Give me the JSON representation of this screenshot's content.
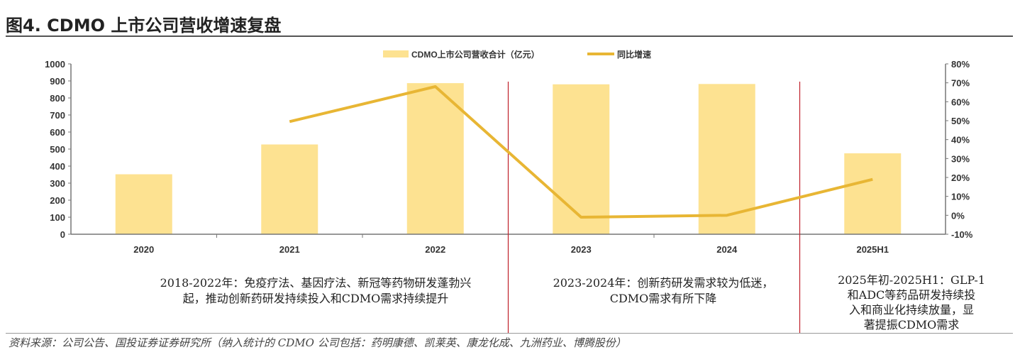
{
  "title": "图4. CDMO 上市公司营收增速复盘",
  "chart_data": {
    "type": "bar+line",
    "categories": [
      "2020",
      "2021",
      "2022",
      "2023",
      "2024",
      "2025H1"
    ],
    "series": [
      {
        "name": "CDMO上市公司营收合计（亿元）",
        "type": "bar",
        "axis": "left",
        "values": [
          352,
          527,
          887,
          880,
          882,
          475
        ],
        "color": "#FDE291"
      },
      {
        "name": "同比增速",
        "type": "line",
        "axis": "right",
        "values": [
          null,
          49.5,
          68,
          -1,
          0,
          19
        ],
        "color": "#E8B634"
      }
    ],
    "left_axis": {
      "ylim": [
        0,
        1000
      ],
      "ticks": [
        "0",
        "100",
        "200",
        "300",
        "400",
        "500",
        "600",
        "700",
        "800",
        "900",
        "1000"
      ]
    },
    "right_axis": {
      "ylim": [
        -10,
        80
      ],
      "ticks": [
        "-10%",
        "0%",
        "10%",
        "20%",
        "30%",
        "40%",
        "50%",
        "60%",
        "70%",
        "80%"
      ]
    },
    "legend_position": "top",
    "dividers_after_categories": [
      "2022",
      "2024"
    ],
    "divider_color": "#C0202A"
  },
  "annotations": [
    [
      "2018-2022年：免疫疗法、基因疗法、新冠等药物研发蓬勃兴",
      "起，推动创新药研发持续投入和CDMO需求持续提升"
    ],
    [
      "2023-2024年：创新药研发需求较为低迷，",
      "CDMO需求有所下降"
    ],
    [
      "2025年初-2025H1：GLP-1",
      "和ADC等药品研发持续投",
      "入和商业化持续放量，显",
      "著提振CDMO需求"
    ]
  ],
  "source": "资料来源：公司公告、国投证券证券研究所（纳入统计的 CDMO 公司包括：药明康德、凯莱英、康龙化成、九洲药业、博腾股份）"
}
